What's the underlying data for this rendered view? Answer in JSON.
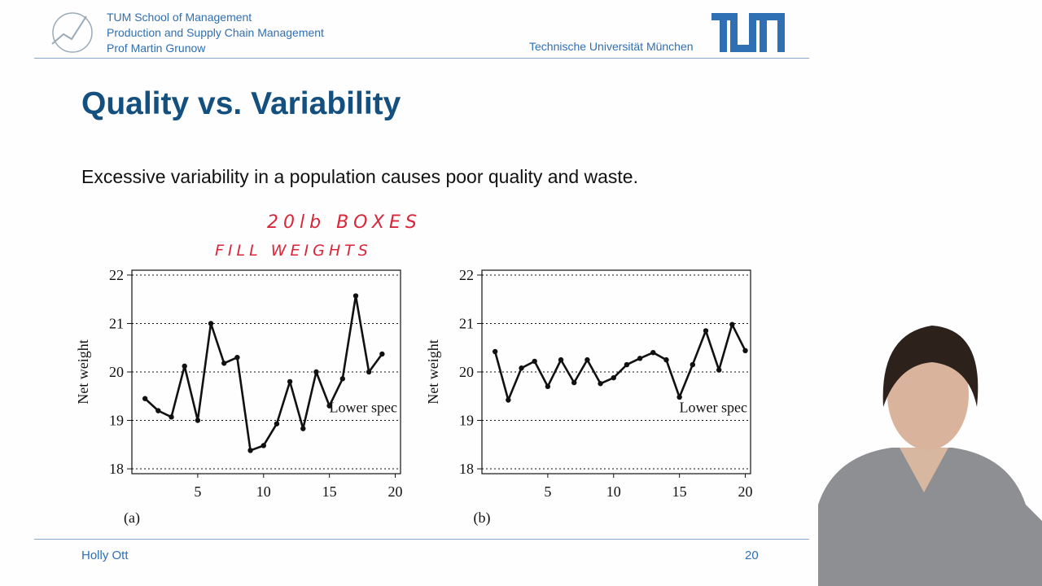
{
  "header": {
    "lines": [
      "TUM School of Management",
      "Production and Supply Chain Management",
      "Prof Martin Grunow"
    ],
    "university": "Technische Universität München"
  },
  "title": "Quality vs. Variability",
  "body": "Excessive variability in a population causes poor quality and waste.",
  "annotation": {
    "line1": "20lb BOXES",
    "line2": "FILL WEIGHTS"
  },
  "footer": {
    "author": "Holly Ott",
    "page": "20"
  },
  "colors": {
    "blue": "#2f6fb3",
    "title_blue": "#14507f",
    "ink": "#d9263a"
  },
  "chart_data": [
    {
      "type": "line",
      "panel_label": "(a)",
      "ylabel": "Net weight",
      "xlim": [
        0,
        20.4
      ],
      "ylim": [
        17.9,
        22.1
      ],
      "x_ticks": [
        5,
        10,
        15,
        20
      ],
      "y_ticks": [
        18,
        19,
        20,
        21,
        22
      ],
      "grid": "horizontal dotted",
      "x": [
        1,
        2,
        3,
        4,
        5,
        6,
        7,
        8,
        9,
        10,
        11,
        12,
        13,
        14,
        15,
        16,
        17,
        18,
        19,
        20
      ],
      "values": [
        19.45,
        19.2,
        19.07,
        20.12,
        19.0,
        21.0,
        20.18,
        20.3,
        18.38,
        18.48,
        18.93,
        19.8,
        18.83,
        20.0,
        19.3,
        19.86,
        21.57,
        20.0,
        20.37,
        null
      ],
      "annotation": "Lower spec"
    },
    {
      "type": "line",
      "panel_label": "(b)",
      "ylabel": "Net weight",
      "xlim": [
        0,
        20.4
      ],
      "ylim": [
        17.9,
        22.1
      ],
      "x_ticks": [
        5,
        10,
        15,
        20
      ],
      "y_ticks": [
        18,
        19,
        20,
        21,
        22
      ],
      "grid": "horizontal dotted",
      "x": [
        1,
        2,
        3,
        4,
        5,
        6,
        7,
        8,
        9,
        10,
        11,
        12,
        13,
        14,
        15,
        16,
        17,
        18,
        19,
        20
      ],
      "values": [
        20.42,
        19.42,
        20.08,
        20.22,
        19.7,
        20.25,
        19.78,
        20.25,
        19.76,
        19.88,
        20.15,
        20.28,
        20.4,
        20.25,
        19.48,
        20.15,
        20.85,
        20.04,
        20.98,
        20.44
      ],
      "annotation": "Lower spec"
    }
  ]
}
